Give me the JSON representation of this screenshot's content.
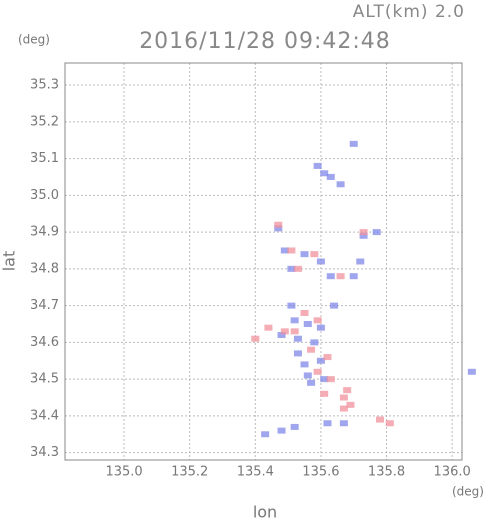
{
  "chart_data": {
    "type": "scatter",
    "title": "2016/11/28 09:42:48",
    "subtitle": "ALT(km) 2.0",
    "y_unit": "(deg)",
    "x_unit": "(deg)",
    "x_label": "lon",
    "y_label": "lat",
    "xlim": [
      134.82,
      136.03
    ],
    "ylim": [
      34.28,
      35.36
    ],
    "xticks": [
      {
        "value": 135,
        "label": "135.0"
      },
      135.2,
      135.4,
      135.6,
      135.8,
      {
        "value": 136,
        "label": "136.0"
      }
    ],
    "yticks": [
      34.3,
      34.4,
      34.5,
      34.6,
      34.7,
      34.8,
      34.9,
      {
        "value": 35,
        "label": "35.0"
      },
      35.1,
      35.2,
      35.3
    ],
    "grid": true,
    "series": [
      {
        "color": "#8088e8",
        "x": [
          135.7,
          135.59,
          135.61,
          135.63,
          135.66,
          135.47,
          135.77,
          135.73,
          135.72,
          135.7,
          135.49,
          135.51,
          135.55,
          135.6,
          135.63,
          135.52,
          135.56,
          135.6,
          135.58,
          135.53,
          135.55,
          135.6,
          135.57,
          135.61,
          135.56,
          135.43,
          135.48,
          135.52,
          135.62,
          135.67,
          136.06,
          135.64,
          135.51,
          135.53,
          135.48
        ],
        "y": [
          35.14,
          35.08,
          35.06,
          35.05,
          35.03,
          34.91,
          34.9,
          34.89,
          34.82,
          34.78,
          34.85,
          34.8,
          34.84,
          34.82,
          34.78,
          34.66,
          34.65,
          34.64,
          34.6,
          34.57,
          34.54,
          34.55,
          34.49,
          34.5,
          34.51,
          34.35,
          34.36,
          34.37,
          34.38,
          34.38,
          34.52,
          34.7,
          34.7,
          34.61,
          34.62
        ]
      },
      {
        "color": "#f0909c",
        "x": [
          135.47,
          135.51,
          135.58,
          135.53,
          135.55,
          135.59,
          135.52,
          135.49,
          135.57,
          135.62,
          135.59,
          135.63,
          135.67,
          135.69,
          135.67,
          135.68,
          135.78,
          135.81,
          135.4,
          135.44,
          135.61,
          135.73,
          135.66
        ],
        "y": [
          34.92,
          34.85,
          34.84,
          34.8,
          34.68,
          34.66,
          34.63,
          34.63,
          34.58,
          34.56,
          34.52,
          34.5,
          34.45,
          34.43,
          34.42,
          34.47,
          34.39,
          34.38,
          34.61,
          34.64,
          34.46,
          34.9,
          34.78
        ]
      }
    ]
  }
}
